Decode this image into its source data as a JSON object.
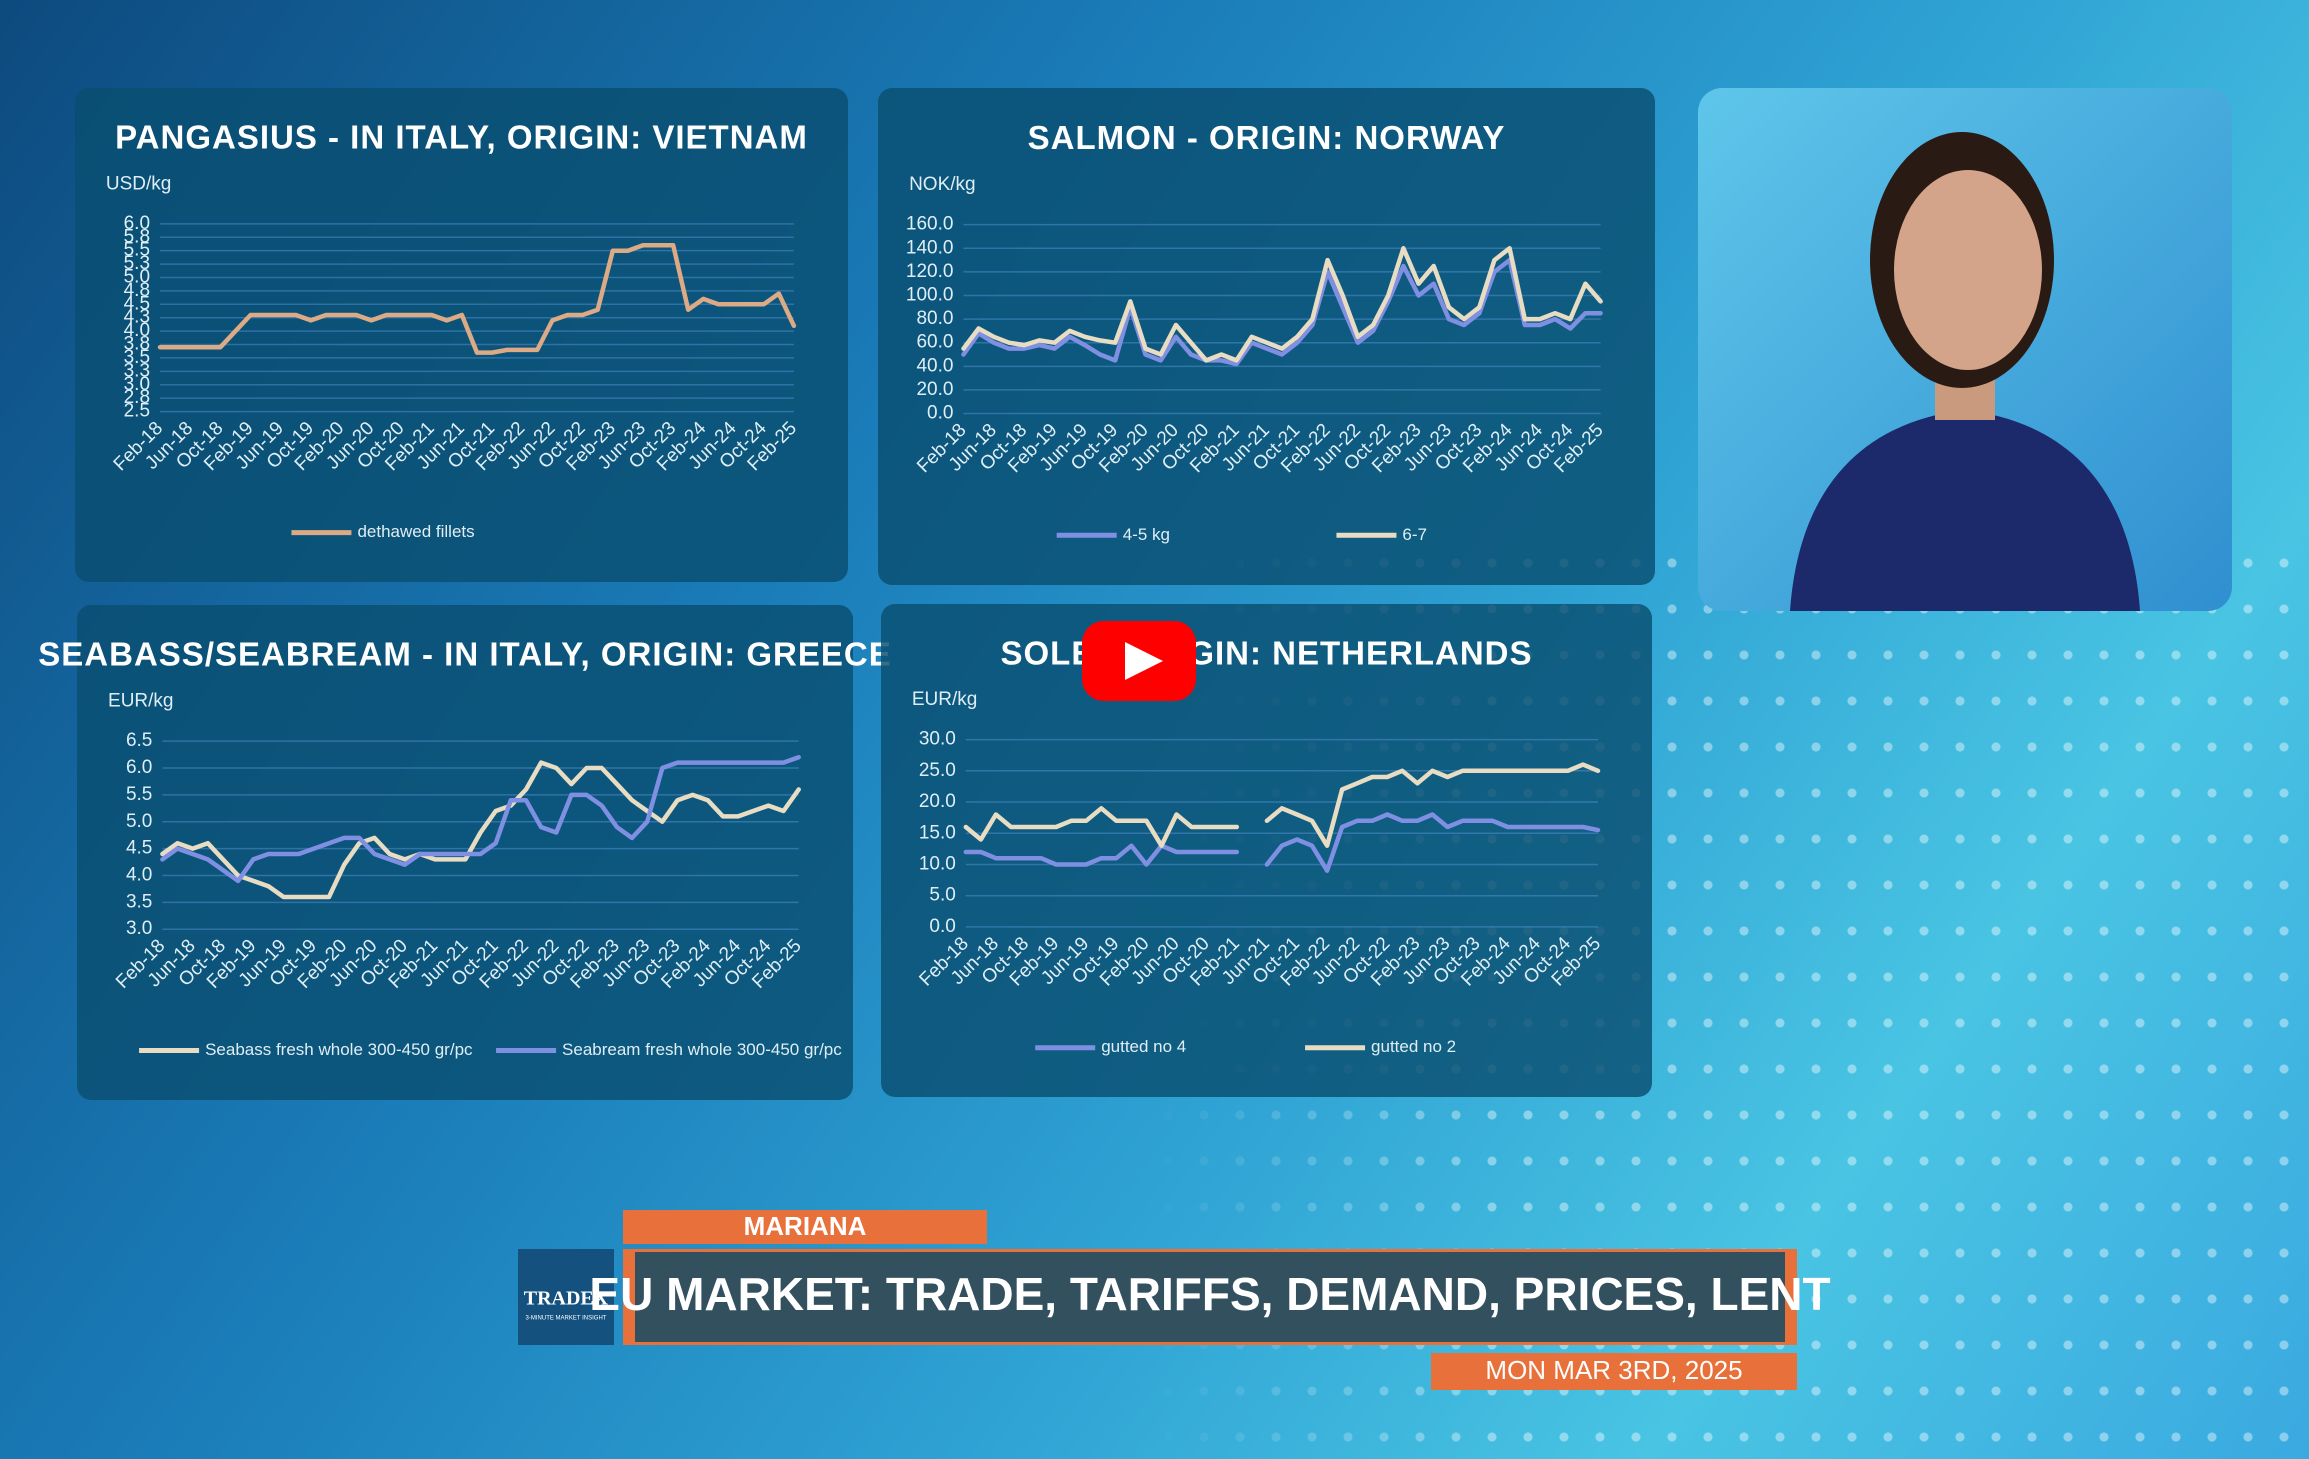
{
  "chart_data": [
    {
      "type": "line",
      "title": "PANGASIUS - IN ITALY, ORIGIN: VIETNAM",
      "y_label": "USD/kg",
      "categories": [
        "Feb-18",
        null,
        "Jun-18",
        null,
        "Oct-18",
        null,
        "Feb-19",
        null,
        "Jun-19",
        null,
        "Oct-19",
        null,
        "Feb-20",
        null,
        "Jun-20",
        null,
        "Oct-20",
        null,
        "Feb-21",
        null,
        "Jun-21",
        null,
        "Oct-21",
        null,
        "Feb-22",
        null,
        "Jun-22",
        null,
        "Oct-22",
        null,
        "Feb-23",
        null,
        "Jun-23",
        null,
        "Oct-23",
        null,
        "Feb-24",
        null,
        "Jun-24",
        null,
        "Oct-24",
        null,
        "Feb-25"
      ],
      "series": [
        {
          "name": "dethawed fillets",
          "color": "#dcaa84",
          "values": [
            3.7,
            3.7,
            3.7,
            3.7,
            3.7,
            4.0,
            4.3,
            4.3,
            4.3,
            4.3,
            4.2,
            4.3,
            4.3,
            4.3,
            4.2,
            4.3,
            4.3,
            4.3,
            4.3,
            4.2,
            4.3,
            3.6,
            3.6,
            3.65,
            3.65,
            3.65,
            4.2,
            4.3,
            4.3,
            4.4,
            5.5,
            5.5,
            5.6,
            5.6,
            5.6,
            4.4,
            4.6,
            4.5,
            4.5,
            4.5,
            4.5,
            4.7,
            4.1
          ]
        }
      ],
      "ylim": [
        2.5,
        6.0
      ],
      "yticks": [
        {
          "value": 2.5,
          "label": "2.5"
        },
        {
          "value": 2.75,
          "label": "2.8"
        },
        {
          "value": 3.0,
          "label": "3.0"
        },
        {
          "value": 3.25,
          "label": "3.3"
        },
        {
          "value": 3.5,
          "label": "3.5"
        },
        {
          "value": 3.75,
          "label": "3.8"
        },
        {
          "value": 4.0,
          "label": "4.0"
        },
        {
          "value": 4.25,
          "label": "4.3"
        },
        {
          "value": 4.5,
          "label": "4.5"
        },
        {
          "value": 4.75,
          "label": "4.8"
        },
        {
          "value": 5.0,
          "label": "5.0"
        },
        {
          "value": 5.25,
          "label": "5.3"
        },
        {
          "value": 5.5,
          "label": "5.5"
        },
        {
          "value": 5.75,
          "label": "5.8"
        },
        {
          "value": 6.0,
          "label": "6.0"
        }
      ],
      "grid": true
    },
    {
      "type": "line",
      "title": "SALMON - ORIGIN: NORWAY",
      "y_label": "NOK/kg",
      "categories": [
        "Feb-18",
        null,
        "Jun-18",
        null,
        "Oct-18",
        null,
        "Feb-19",
        null,
        "Jun-19",
        null,
        "Oct-19",
        null,
        "Feb-20",
        null,
        "Jun-20",
        null,
        "Oct-20",
        null,
        "Feb-21",
        null,
        "Jun-21",
        null,
        "Oct-21",
        null,
        "Feb-22",
        null,
        "Jun-22",
        null,
        "Oct-22",
        null,
        "Feb-23",
        null,
        "Jun-23",
        null,
        "Oct-23",
        null,
        "Feb-24",
        null,
        "Jun-24",
        null,
        "Oct-24",
        null,
        "Feb-25"
      ],
      "series": [
        {
          "name": "4-5 kg",
          "color": "#7f8fe2",
          "values": [
            50,
            68,
            60,
            55,
            55,
            58,
            55,
            65,
            58,
            50,
            45,
            90,
            50,
            45,
            65,
            50,
            45,
            45,
            42,
            60,
            55,
            50,
            60,
            75,
            120,
            90,
            60,
            70,
            95,
            125,
            100,
            110,
            80,
            75,
            85,
            120,
            130,
            75,
            75,
            80,
            72,
            85,
            85
          ]
        },
        {
          "name": "6-7",
          "color": "#e8dcc2",
          "values": [
            55,
            72,
            65,
            60,
            58,
            62,
            60,
            70,
            65,
            62,
            60,
            95,
            55,
            50,
            75,
            60,
            45,
            50,
            45,
            65,
            60,
            55,
            65,
            80,
            130,
            100,
            65,
            75,
            100,
            140,
            110,
            125,
            90,
            80,
            90,
            130,
            140,
            80,
            80,
            85,
            80,
            110,
            95
          ]
        }
      ],
      "ylim": [
        0,
        160
      ],
      "yticks": [
        {
          "value": 0,
          "label": "0.0"
        },
        {
          "value": 20,
          "label": "20.0"
        },
        {
          "value": 40,
          "label": "40.0"
        },
        {
          "value": 60,
          "label": "60.0"
        },
        {
          "value": 80,
          "label": "80.0"
        },
        {
          "value": 100,
          "label": "100.0"
        },
        {
          "value": 120,
          "label": "120.0"
        },
        {
          "value": 140,
          "label": "140.0"
        },
        {
          "value": 160,
          "label": "160.0"
        }
      ],
      "grid": true
    },
    {
      "type": "line",
      "title": "SEABASS/SEABREAM - IN ITALY, ORIGIN: GREECE",
      "y_label": "EUR/kg",
      "categories": [
        "Feb-18",
        null,
        "Jun-18",
        null,
        "Oct-18",
        null,
        "Feb-19",
        null,
        "Jun-19",
        null,
        "Oct-19",
        null,
        "Feb-20",
        null,
        "Jun-20",
        null,
        "Oct-20",
        null,
        "Feb-21",
        null,
        "Jun-21",
        null,
        "Oct-21",
        null,
        "Feb-22",
        null,
        "Jun-22",
        null,
        "Oct-22",
        null,
        "Feb-23",
        null,
        "Jun-23",
        null,
        "Oct-23",
        null,
        "Feb-24",
        null,
        "Jun-24",
        null,
        "Oct-24",
        null,
        "Feb-25"
      ],
      "series": [
        {
          "name": "Seabass fresh whole 300-450 gr/pc",
          "color": "#e8dcc2",
          "values": [
            4.4,
            4.6,
            4.5,
            4.6,
            4.3,
            4.0,
            3.9,
            3.8,
            3.6,
            3.6,
            3.6,
            3.6,
            4.2,
            4.6,
            4.7,
            4.4,
            4.3,
            4.4,
            4.3,
            4.3,
            4.3,
            4.8,
            5.2,
            5.3,
            5.6,
            6.1,
            6.0,
            5.7,
            6.0,
            6.0,
            5.7,
            5.4,
            5.2,
            5.0,
            5.4,
            5.5,
            5.4,
            5.1,
            5.1,
            5.2,
            5.3,
            5.2,
            5.6
          ]
        },
        {
          "name": "Seabream fresh whole 300-450 gr/pc",
          "color": "#7f8fe2",
          "values": [
            4.3,
            4.5,
            4.4,
            4.3,
            4.1,
            3.9,
            4.3,
            4.4,
            4.4,
            4.4,
            4.5,
            4.6,
            4.7,
            4.7,
            4.4,
            4.3,
            4.2,
            4.4,
            4.4,
            4.4,
            4.4,
            4.4,
            4.6,
            5.4,
            5.4,
            4.9,
            4.8,
            5.5,
            5.5,
            5.3,
            4.9,
            4.7,
            5.0,
            6.0,
            6.1,
            6.1,
            6.1,
            6.1,
            6.1,
            6.1,
            6.1,
            6.1,
            6.2
          ]
        }
      ],
      "ylim": [
        3.0,
        6.5
      ],
      "yticks": [
        {
          "value": 3.0,
          "label": "3.0"
        },
        {
          "value": 3.5,
          "label": "3.5"
        },
        {
          "value": 4.0,
          "label": "4.0"
        },
        {
          "value": 4.5,
          "label": "4.5"
        },
        {
          "value": 5.0,
          "label": "5.0"
        },
        {
          "value": 5.5,
          "label": "5.5"
        },
        {
          "value": 6.0,
          "label": "6.0"
        },
        {
          "value": 6.5,
          "label": "6.5"
        }
      ],
      "grid": true
    },
    {
      "type": "line",
      "title": "SOLE - ORIGIN: NETHERLANDS",
      "y_label": "EUR/kg",
      "categories": [
        "Feb-18",
        null,
        "Jun-18",
        null,
        "Oct-18",
        null,
        "Feb-19",
        null,
        "Jun-19",
        null,
        "Oct-19",
        null,
        "Feb-20",
        null,
        "Jun-20",
        null,
        "Oct-20",
        null,
        "Feb-21",
        null,
        "Jun-21",
        null,
        "Oct-21",
        null,
        "Feb-22",
        null,
        "Jun-22",
        null,
        "Oct-22",
        null,
        "Feb-23",
        null,
        "Jun-23",
        null,
        "Oct-23",
        null,
        "Feb-24",
        null,
        "Jun-24",
        null,
        "Oct-24",
        null,
        "Feb-25"
      ],
      "series": [
        {
          "name": "gutted no 4",
          "color": "#7f8fe2",
          "values": [
            12,
            12,
            11,
            11,
            11,
            11,
            10,
            10,
            10,
            11,
            11,
            13,
            10,
            13,
            12,
            12,
            12,
            12,
            12,
            null,
            10,
            13,
            14,
            13,
            9,
            16,
            17,
            17,
            18,
            17,
            17,
            18,
            16,
            17,
            17,
            17,
            16,
            16,
            16,
            16,
            16,
            16,
            15.5
          ]
        },
        {
          "name": "gutted no 2",
          "color": "#e8dcc2",
          "values": [
            16,
            14,
            18,
            16,
            16,
            16,
            16,
            17,
            17,
            19,
            17,
            17,
            17,
            13,
            18,
            16,
            16,
            16,
            16,
            null,
            17,
            19,
            18,
            17,
            13,
            22,
            23,
            24,
            24,
            25,
            23,
            25,
            24,
            25,
            25,
            25,
            25,
            25,
            25,
            25,
            25,
            26,
            25
          ]
        }
      ],
      "ylim": [
        0,
        30
      ],
      "yticks": [
        {
          "value": 0,
          "label": "0.0"
        },
        {
          "value": 5,
          "label": "5.0"
        },
        {
          "value": 10,
          "label": "10.0"
        },
        {
          "value": 15,
          "label": "15.0"
        },
        {
          "value": 20,
          "label": "20.0"
        },
        {
          "value": 25,
          "label": "25.0"
        },
        {
          "value": 30,
          "label": "30.0"
        }
      ],
      "grid": true
    }
  ],
  "video": {
    "presenter_name": "MARIANA",
    "headline": "EU MARKET: TRADE, TARIFFS, DEMAND, PRICES, LENT",
    "date": "MON MAR 3RD, 2025",
    "logo": "TRADEX",
    "logo_tagline": "3-MINUTE MARKET INSIGHT"
  }
}
